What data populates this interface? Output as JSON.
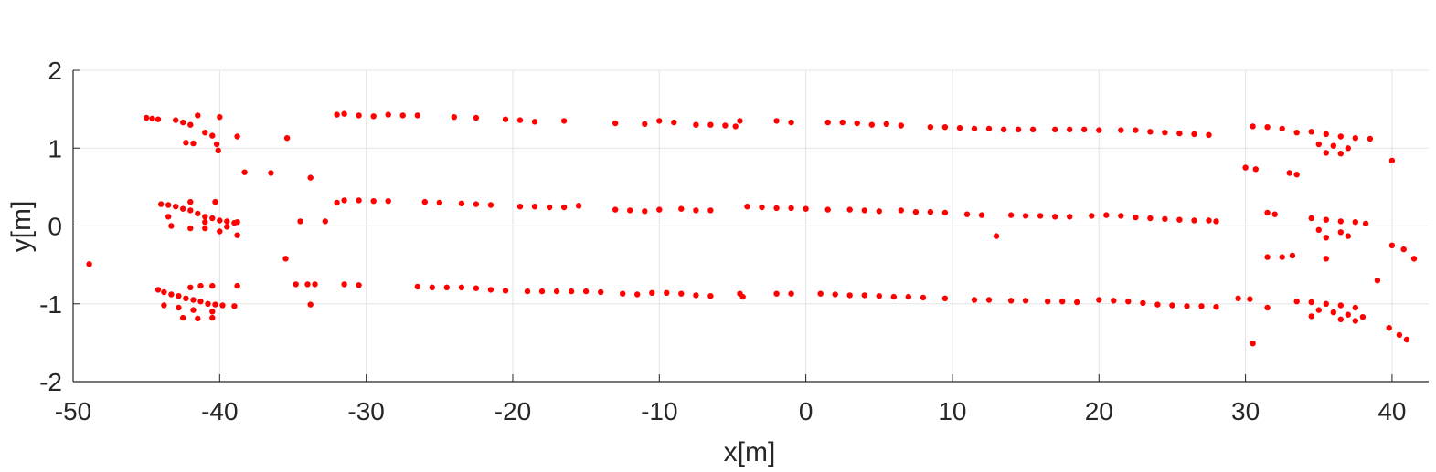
{
  "chart_data": {
    "type": "scatter",
    "title": "",
    "xlabel": "x[m]",
    "ylabel": "y[m]",
    "xlim": [
      -50,
      42.5
    ],
    "ylim": [
      -2,
      2
    ],
    "xticks": [
      -50,
      -40,
      -30,
      -20,
      -10,
      0,
      10,
      20,
      30,
      40
    ],
    "yticks": [
      -2,
      -1,
      0,
      1,
      2
    ],
    "xtick_labels": [
      "-50",
      "-40",
      "-30",
      "-20",
      "-10",
      "0",
      "10",
      "20",
      "30",
      "40"
    ],
    "ytick_labels": [
      "-2",
      "-1",
      "0",
      "1",
      "2"
    ],
    "grid": true,
    "marker_color": "#ff0000",
    "series": [
      {
        "points": [
          [
            -48.9,
            -0.49
          ],
          [
            -45.0,
            1.39
          ],
          [
            -44.6,
            1.38
          ],
          [
            -44.2,
            1.37
          ],
          [
            -43.0,
            1.36
          ],
          [
            -42.5,
            1.33
          ],
          [
            -42.0,
            1.3
          ],
          [
            -41.5,
            1.42
          ],
          [
            -41.0,
            1.2
          ],
          [
            -40.5,
            1.16
          ],
          [
            -40.0,
            1.4
          ],
          [
            -42.3,
            1.07
          ],
          [
            -41.8,
            1.06
          ],
          [
            -40.2,
            1.05
          ],
          [
            -40.1,
            0.97
          ],
          [
            -38.8,
            1.15
          ],
          [
            -38.3,
            0.69
          ],
          [
            -36.5,
            0.68
          ],
          [
            -35.4,
            1.13
          ],
          [
            -33.8,
            0.62
          ],
          [
            -32.0,
            1.43
          ],
          [
            -31.5,
            1.44
          ],
          [
            -30.5,
            1.42
          ],
          [
            -29.5,
            1.41
          ],
          [
            -28.5,
            1.43
          ],
          [
            -27.5,
            1.42
          ],
          [
            -26.5,
            1.42
          ],
          [
            -24.0,
            1.4
          ],
          [
            -22.5,
            1.39
          ],
          [
            -20.5,
            1.37
          ],
          [
            -19.5,
            1.36
          ],
          [
            -18.5,
            1.34
          ],
          [
            -16.5,
            1.35
          ],
          [
            -13.0,
            1.32
          ],
          [
            -11.0,
            1.31
          ],
          [
            -10.0,
            1.35
          ],
          [
            -9.0,
            1.33
          ],
          [
            -7.5,
            1.3
          ],
          [
            -6.5,
            1.3
          ],
          [
            -5.5,
            1.29
          ],
          [
            -4.5,
            1.35
          ],
          [
            -4.8,
            1.28
          ],
          [
            -2.0,
            1.35
          ],
          [
            -1.0,
            1.33
          ],
          [
            1.5,
            1.33
          ],
          [
            2.5,
            1.33
          ],
          [
            3.5,
            1.32
          ],
          [
            4.5,
            1.3
          ],
          [
            5.5,
            1.31
          ],
          [
            6.5,
            1.29
          ],
          [
            8.5,
            1.27
          ],
          [
            9.5,
            1.27
          ],
          [
            10.5,
            1.26
          ],
          [
            11.5,
            1.25
          ],
          [
            12.5,
            1.25
          ],
          [
            13.5,
            1.24
          ],
          [
            14.5,
            1.24
          ],
          [
            15.5,
            1.24
          ],
          [
            17.0,
            1.24
          ],
          [
            18.0,
            1.24
          ],
          [
            19.0,
            1.24
          ],
          [
            20.0,
            1.23
          ],
          [
            21.5,
            1.23
          ],
          [
            22.5,
            1.23
          ],
          [
            23.5,
            1.21
          ],
          [
            24.5,
            1.2
          ],
          [
            25.5,
            1.19
          ],
          [
            26.5,
            1.18
          ],
          [
            27.5,
            1.17
          ],
          [
            30.5,
            1.28
          ],
          [
            31.5,
            1.27
          ],
          [
            32.5,
            1.25
          ],
          [
            33.5,
            1.2
          ],
          [
            34.5,
            1.21
          ],
          [
            35.5,
            1.18
          ],
          [
            36.5,
            1.15
          ],
          [
            37.5,
            1.13
          ],
          [
            35.0,
            1.05
          ],
          [
            36.0,
            1.03
          ],
          [
            37.0,
            1.0
          ],
          [
            35.5,
            0.94
          ],
          [
            36.5,
            0.93
          ],
          [
            38.5,
            1.12
          ],
          [
            40.0,
            0.84
          ],
          [
            -44.0,
            0.28
          ],
          [
            -43.5,
            0.27
          ],
          [
            -43.0,
            0.25
          ],
          [
            -42.5,
            0.22
          ],
          [
            -42.0,
            0.2
          ],
          [
            -41.5,
            0.16
          ],
          [
            -41.0,
            0.12
          ],
          [
            -40.5,
            0.1
          ],
          [
            -40.0,
            0.07
          ],
          [
            -39.5,
            0.06
          ],
          [
            -39.0,
            0.04
          ],
          [
            -42.0,
            0.31
          ],
          [
            -40.3,
            0.31
          ],
          [
            -43.5,
            0.12
          ],
          [
            -41.0,
            0.05
          ],
          [
            -43.3,
            0.0
          ],
          [
            -42.0,
            -0.03
          ],
          [
            -41.0,
            -0.03
          ],
          [
            -39.5,
            -0.01
          ],
          [
            -38.8,
            0.05
          ],
          [
            -38.8,
            -0.12
          ],
          [
            -40.0,
            -0.07
          ],
          [
            -34.5,
            0.06
          ],
          [
            -32.8,
            0.06
          ],
          [
            -32.0,
            0.3
          ],
          [
            -31.5,
            0.33
          ],
          [
            -30.5,
            0.33
          ],
          [
            -29.5,
            0.32
          ],
          [
            -28.5,
            0.32
          ],
          [
            -26.0,
            0.31
          ],
          [
            -25.0,
            0.3
          ],
          [
            -23.5,
            0.29
          ],
          [
            -22.5,
            0.28
          ],
          [
            -21.5,
            0.27
          ],
          [
            -19.5,
            0.25
          ],
          [
            -18.5,
            0.25
          ],
          [
            -17.5,
            0.24
          ],
          [
            -16.5,
            0.24
          ],
          [
            -15.5,
            0.26
          ],
          [
            -13.0,
            0.21
          ],
          [
            -12.0,
            0.2
          ],
          [
            -11.0,
            0.19
          ],
          [
            -10.0,
            0.21
          ],
          [
            -8.5,
            0.22
          ],
          [
            -7.5,
            0.2
          ],
          [
            -6.5,
            0.2
          ],
          [
            -4.0,
            0.25
          ],
          [
            -3.0,
            0.24
          ],
          [
            -2.0,
            0.23
          ],
          [
            -1.0,
            0.23
          ],
          [
            0.0,
            0.22
          ],
          [
            1.5,
            0.21
          ],
          [
            3.0,
            0.21
          ],
          [
            4.0,
            0.2
          ],
          [
            5.0,
            0.19
          ],
          [
            6.5,
            0.2
          ],
          [
            7.5,
            0.18
          ],
          [
            8.5,
            0.18
          ],
          [
            9.5,
            0.17
          ],
          [
            11.0,
            0.15
          ],
          [
            12.0,
            0.14
          ],
          [
            13.0,
            -0.13
          ],
          [
            14.0,
            0.14
          ],
          [
            15.0,
            0.13
          ],
          [
            16.0,
            0.13
          ],
          [
            17.0,
            0.12
          ],
          [
            18.0,
            0.12
          ],
          [
            19.5,
            0.13
          ],
          [
            20.5,
            0.14
          ],
          [
            21.5,
            0.13
          ],
          [
            22.5,
            0.11
          ],
          [
            23.5,
            0.1
          ],
          [
            24.5,
            0.09
          ],
          [
            25.5,
            0.08
          ],
          [
            26.5,
            0.07
          ],
          [
            27.5,
            0.07
          ],
          [
            28.0,
            0.06
          ],
          [
            30.0,
            0.75
          ],
          [
            30.7,
            0.73
          ],
          [
            31.5,
            0.17
          ],
          [
            32.0,
            0.15
          ],
          [
            33.0,
            0.68
          ],
          [
            33.5,
            0.66
          ],
          [
            34.5,
            0.1
          ],
          [
            35.5,
            0.08
          ],
          [
            36.5,
            0.06
          ],
          [
            37.5,
            0.05
          ],
          [
            35.0,
            -0.05
          ],
          [
            36.5,
            -0.08
          ],
          [
            38.2,
            0.03
          ],
          [
            35.5,
            -0.15
          ],
          [
            37.0,
            -0.13
          ],
          [
            40.0,
            -0.25
          ],
          [
            40.8,
            -0.3
          ],
          [
            41.5,
            -0.42
          ],
          [
            31.5,
            -0.4
          ],
          [
            32.5,
            -0.4
          ],
          [
            33.2,
            -0.38
          ],
          [
            35.5,
            -0.42
          ],
          [
            -44.2,
            -0.82
          ],
          [
            -43.8,
            -0.85
          ],
          [
            -43.3,
            -0.88
          ],
          [
            -42.8,
            -0.9
          ],
          [
            -42.3,
            -0.93
          ],
          [
            -41.8,
            -0.95
          ],
          [
            -41.3,
            -0.97
          ],
          [
            -40.8,
            -1.0
          ],
          [
            -40.3,
            -1.01
          ],
          [
            -39.8,
            -1.02
          ],
          [
            -43.8,
            -1.02
          ],
          [
            -42.8,
            -1.05
          ],
          [
            -41.8,
            -1.08
          ],
          [
            -40.5,
            -1.1
          ],
          [
            -42.5,
            -1.18
          ],
          [
            -41.5,
            -1.19
          ],
          [
            -40.5,
            -1.18
          ],
          [
            -39.0,
            -1.03
          ],
          [
            -38.8,
            -0.77
          ],
          [
            -40.5,
            -0.77
          ],
          [
            -41.3,
            -0.77
          ],
          [
            -42.0,
            -0.79
          ],
          [
            -35.5,
            -0.42
          ],
          [
            -34.8,
            -0.75
          ],
          [
            -34.0,
            -0.75
          ],
          [
            -33.5,
            -0.75
          ],
          [
            -33.8,
            -1.01
          ],
          [
            -31.5,
            -0.75
          ],
          [
            -30.5,
            -0.76
          ],
          [
            -26.5,
            -0.78
          ],
          [
            -25.5,
            -0.79
          ],
          [
            -24.5,
            -0.79
          ],
          [
            -23.5,
            -0.79
          ],
          [
            -22.5,
            -0.8
          ],
          [
            -21.5,
            -0.82
          ],
          [
            -20.5,
            -0.83
          ],
          [
            -19.0,
            -0.84
          ],
          [
            -18.0,
            -0.84
          ],
          [
            -17.0,
            -0.84
          ],
          [
            -16.0,
            -0.84
          ],
          [
            -15.0,
            -0.84
          ],
          [
            -14.0,
            -0.85
          ],
          [
            -12.5,
            -0.87
          ],
          [
            -11.5,
            -0.88
          ],
          [
            -10.5,
            -0.86
          ],
          [
            -9.5,
            -0.86
          ],
          [
            -8.5,
            -0.87
          ],
          [
            -7.5,
            -0.89
          ],
          [
            -6.5,
            -0.9
          ],
          [
            -4.5,
            -0.87
          ],
          [
            -4.3,
            -0.91
          ],
          [
            -2.0,
            -0.87
          ],
          [
            -1.0,
            -0.87
          ],
          [
            1.0,
            -0.87
          ],
          [
            2.0,
            -0.88
          ],
          [
            3.0,
            -0.89
          ],
          [
            4.0,
            -0.89
          ],
          [
            5.0,
            -0.9
          ],
          [
            6.0,
            -0.91
          ],
          [
            7.0,
            -0.91
          ],
          [
            8.0,
            -0.92
          ],
          [
            9.5,
            -0.93
          ],
          [
            11.5,
            -0.95
          ],
          [
            12.5,
            -0.95
          ],
          [
            14.0,
            -0.96
          ],
          [
            15.0,
            -0.96
          ],
          [
            16.5,
            -0.97
          ],
          [
            17.5,
            -0.97
          ],
          [
            18.5,
            -0.98
          ],
          [
            20.0,
            -0.95
          ],
          [
            21.0,
            -0.96
          ],
          [
            22.0,
            -0.97
          ],
          [
            23.0,
            -0.99
          ],
          [
            24.0,
            -1.01
          ],
          [
            25.0,
            -1.02
          ],
          [
            26.0,
            -1.03
          ],
          [
            27.0,
            -1.03
          ],
          [
            28.0,
            -1.04
          ],
          [
            29.5,
            -0.93
          ],
          [
            30.3,
            -0.94
          ],
          [
            30.5,
            -1.51
          ],
          [
            31.5,
            -1.05
          ],
          [
            33.5,
            -0.97
          ],
          [
            34.5,
            -0.98
          ],
          [
            35.5,
            -1.0
          ],
          [
            36.5,
            -1.02
          ],
          [
            37.5,
            -1.05
          ],
          [
            35.0,
            -1.08
          ],
          [
            36.0,
            -1.11
          ],
          [
            37.0,
            -1.14
          ],
          [
            38.0,
            -1.17
          ],
          [
            34.5,
            -1.16
          ],
          [
            36.5,
            -1.2
          ],
          [
            37.5,
            -1.22
          ],
          [
            39.0,
            -0.7
          ],
          [
            39.8,
            -1.31
          ],
          [
            40.5,
            -1.4
          ],
          [
            41.0,
            -1.46
          ]
        ]
      }
    ]
  }
}
